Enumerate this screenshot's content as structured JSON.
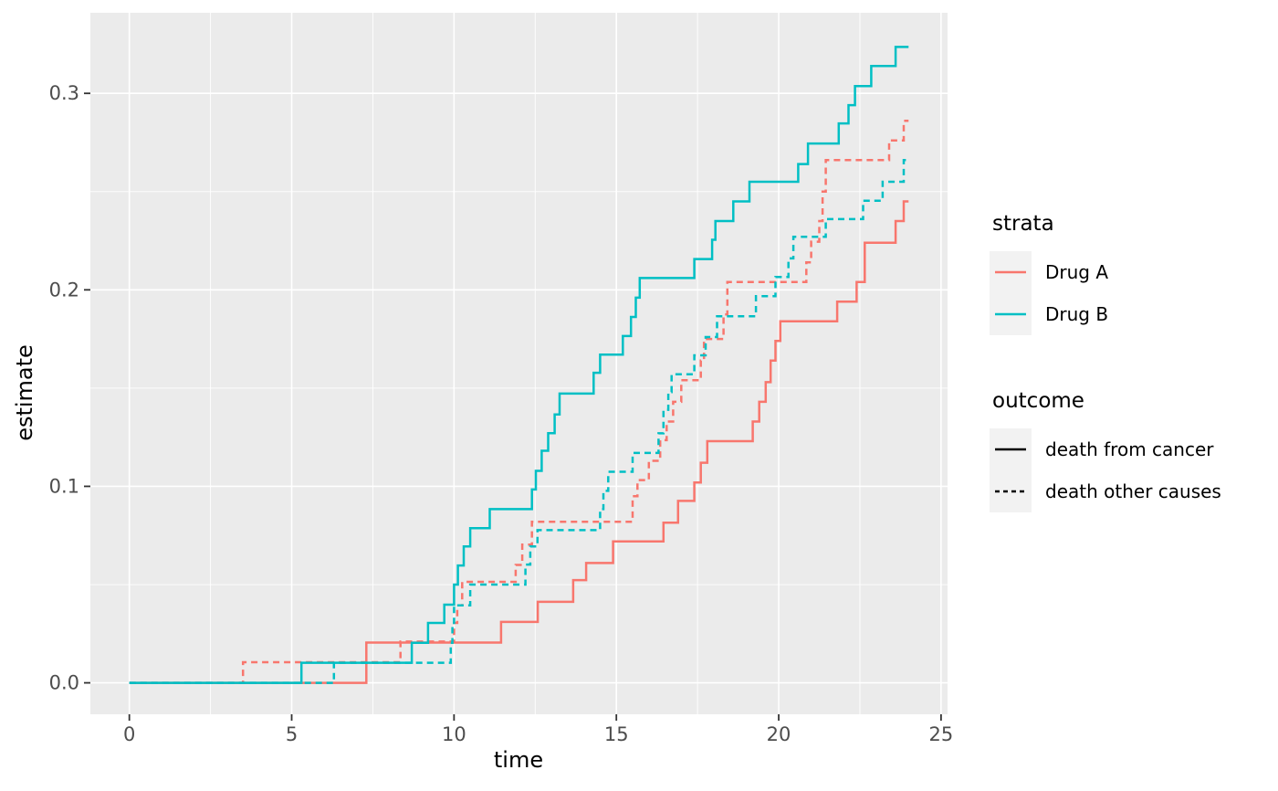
{
  "legend": {
    "strata": {
      "title": "strata",
      "items": [
        {
          "label": "Drug A",
          "color": "#F8766D",
          "dash": "solid"
        },
        {
          "label": "Drug B",
          "color": "#00BFC4",
          "dash": "solid"
        }
      ]
    },
    "outcome": {
      "title": "outcome",
      "items": [
        {
          "label": "death from cancer",
          "color": "#000000",
          "dash": "solid"
        },
        {
          "label": "death other causes",
          "color": "#000000",
          "dash": "dashed"
        }
      ]
    }
  },
  "chart_data": {
    "type": "line",
    "step": true,
    "title": "",
    "xlabel": "time",
    "ylabel": "estimate",
    "xlim": [
      -1.2,
      25.2
    ],
    "ylim": [
      -0.016,
      0.341
    ],
    "x_major_ticks": [
      0,
      5,
      10,
      15,
      20,
      25
    ],
    "x_tick_labels": [
      "0",
      "5",
      "10",
      "15",
      "20",
      "25"
    ],
    "x_minor_ticks": [
      2.5,
      7.5,
      12.5,
      17.5,
      22.5
    ],
    "y_major_ticks": [
      0.0,
      0.1,
      0.2,
      0.3
    ],
    "y_tick_labels": [
      "0.0",
      "0.1",
      "0.2",
      "0.3"
    ],
    "y_minor_ticks": [
      0.05,
      0.15,
      0.25
    ],
    "panel_bg": "#EBEBEB",
    "grid_color": "#FFFFFF",
    "tick_color": "#333333",
    "tick_label_color": "#4D4D4D",
    "legend_position": "right",
    "t_start": 0,
    "t_end": 24,
    "series": [
      {
        "name": "Drug A / death from cancer",
        "stratum": "Drug A",
        "outcome": "death from cancer",
        "color": "#F8766D",
        "dash": "solid",
        "jumps": [
          [
            7.3,
            0.0205
          ],
          [
            11.45,
            0.031
          ],
          [
            12.58,
            0.0412
          ],
          [
            13.67,
            0.0523
          ],
          [
            14.07,
            0.061
          ],
          [
            14.9,
            0.072
          ],
          [
            16.45,
            0.0815
          ],
          [
            16.9,
            0.0926
          ],
          [
            17.4,
            0.102
          ],
          [
            17.6,
            0.112
          ],
          [
            17.8,
            0.123
          ],
          [
            19.2,
            0.133
          ],
          [
            19.4,
            0.143
          ],
          [
            19.6,
            0.153
          ],
          [
            19.75,
            0.164
          ],
          [
            19.9,
            0.174
          ],
          [
            20.05,
            0.184
          ],
          [
            21.8,
            0.194
          ],
          [
            22.4,
            0.204
          ],
          [
            22.65,
            0.224
          ],
          [
            23.6,
            0.235
          ],
          [
            23.85,
            0.245
          ]
        ]
      },
      {
        "name": "Drug A / death other causes",
        "stratum": "Drug A",
        "outcome": "death other causes",
        "color": "#F8766D",
        "dash": "dashed",
        "jumps": [
          [
            3.5,
            0.0105
          ],
          [
            8.35,
            0.021
          ],
          [
            10.0,
            0.0305
          ],
          [
            10.1,
            0.0394
          ],
          [
            10.25,
            0.0514
          ],
          [
            11.9,
            0.06
          ],
          [
            12.1,
            0.0703
          ],
          [
            12.4,
            0.082
          ],
          [
            15.5,
            0.095
          ],
          [
            15.65,
            0.1032
          ],
          [
            16.0,
            0.113
          ],
          [
            16.35,
            0.1235
          ],
          [
            16.55,
            0.133
          ],
          [
            16.75,
            0.143
          ],
          [
            17.0,
            0.154
          ],
          [
            17.6,
            0.164
          ],
          [
            17.7,
            0.175
          ],
          [
            18.3,
            0.1875
          ],
          [
            18.42,
            0.204
          ],
          [
            20.85,
            0.214
          ],
          [
            21.0,
            0.2245
          ],
          [
            21.25,
            0.235
          ],
          [
            21.35,
            0.25
          ],
          [
            21.45,
            0.266
          ],
          [
            23.4,
            0.276
          ],
          [
            23.85,
            0.286
          ]
        ]
      },
      {
        "name": "Drug B / death from cancer",
        "stratum": "Drug B",
        "outcome": "death from cancer",
        "color": "#00BFC4",
        "dash": "solid",
        "jumps": [
          [
            5.3,
            0.0102
          ],
          [
            8.7,
            0.0204
          ],
          [
            9.2,
            0.0305
          ],
          [
            9.7,
            0.0398
          ],
          [
            10.0,
            0.05
          ],
          [
            10.12,
            0.0597
          ],
          [
            10.3,
            0.0694
          ],
          [
            10.5,
            0.0787
          ],
          [
            11.1,
            0.0884
          ],
          [
            12.4,
            0.0984
          ],
          [
            12.52,
            0.1079
          ],
          [
            12.7,
            0.1181
          ],
          [
            12.9,
            0.1271
          ],
          [
            13.1,
            0.1366
          ],
          [
            13.25,
            0.1472
          ],
          [
            14.3,
            0.1578
          ],
          [
            14.5,
            0.167
          ],
          [
            15.2,
            0.1765
          ],
          [
            15.45,
            0.1862
          ],
          [
            15.6,
            0.196
          ],
          [
            15.72,
            0.206
          ],
          [
            17.4,
            0.2157
          ],
          [
            17.95,
            0.2255
          ],
          [
            18.05,
            0.235
          ],
          [
            18.6,
            0.245
          ],
          [
            19.1,
            0.255
          ],
          [
            20.6,
            0.264
          ],
          [
            20.9,
            0.2745
          ],
          [
            21.85,
            0.2847
          ],
          [
            22.15,
            0.294
          ],
          [
            22.35,
            0.3037
          ],
          [
            22.85,
            0.3139
          ],
          [
            23.6,
            0.3236
          ]
        ]
      },
      {
        "name": "Drug B / death other causes",
        "stratum": "Drug B",
        "outcome": "death other causes",
        "color": "#00BFC4",
        "dash": "dashed",
        "jumps": [
          [
            6.3,
            0.0102
          ],
          [
            9.9,
            0.0204
          ],
          [
            9.95,
            0.0305
          ],
          [
            10.0,
            0.0394
          ],
          [
            10.5,
            0.05
          ],
          [
            12.2,
            0.0602
          ],
          [
            12.35,
            0.0694
          ],
          [
            12.57,
            0.0777
          ],
          [
            14.5,
            0.0884
          ],
          [
            14.6,
            0.0977
          ],
          [
            14.75,
            0.1074
          ],
          [
            15.5,
            0.117
          ],
          [
            16.3,
            0.127
          ],
          [
            16.45,
            0.139
          ],
          [
            16.6,
            0.148
          ],
          [
            16.7,
            0.157
          ],
          [
            17.4,
            0.1667
          ],
          [
            17.75,
            0.176
          ],
          [
            18.1,
            0.1866
          ],
          [
            19.3,
            0.1968
          ],
          [
            19.9,
            0.2065
          ],
          [
            20.3,
            0.216
          ],
          [
            20.45,
            0.227
          ],
          [
            21.45,
            0.236
          ],
          [
            22.6,
            0.2454
          ],
          [
            23.2,
            0.255
          ],
          [
            23.85,
            0.266
          ]
        ]
      }
    ]
  }
}
